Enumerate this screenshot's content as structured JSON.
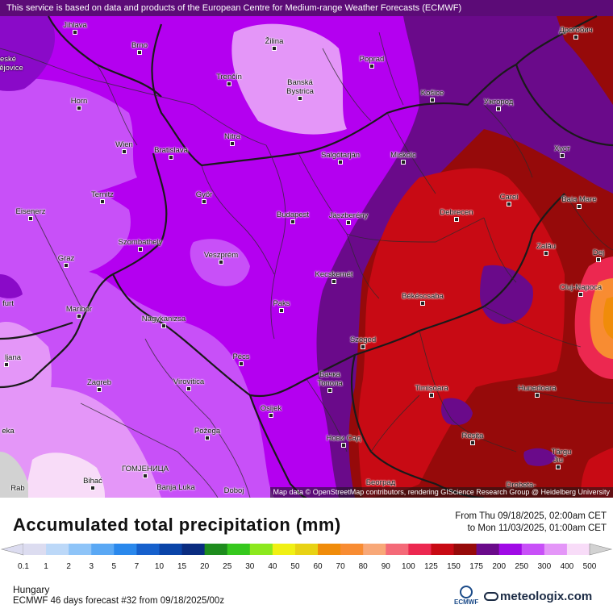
{
  "map": {
    "notice": "This service is based on data and products of the European Centre for Medium-range Weather Forecasts (ECMWF)",
    "attribution": "Map data © OpenStreetMap contributors, rendering GIScience Research Group @ Heidelberg University",
    "cities": [
      {
        "name": "Jihlava"
      },
      {
        "name": "Brno"
      },
      {
        "name": "Žilina"
      },
      {
        "name": "Poprad"
      },
      {
        "name": "Дрогобич"
      },
      {
        "name": "eské"
      },
      {
        "name": "ějovice"
      },
      {
        "name": "Trenčín"
      },
      {
        "name": "Banská"
      },
      {
        "name": "Bystrica"
      },
      {
        "name": "Košice"
      },
      {
        "name": "Ужгород"
      },
      {
        "name": "Horn"
      },
      {
        "name": "Nitra"
      },
      {
        "name": "Wien"
      },
      {
        "name": "Bratislava"
      },
      {
        "name": "Salgótarján"
      },
      {
        "name": "Miskolc"
      },
      {
        "name": "Хуст"
      },
      {
        "name": "Ternitz"
      },
      {
        "name": "Győr"
      },
      {
        "name": "Carei"
      },
      {
        "name": "Baia Mare"
      },
      {
        "name": "Eisenerz"
      },
      {
        "name": "Budapest"
      },
      {
        "name": "Jászberény"
      },
      {
        "name": "Debrecen"
      },
      {
        "name": "Szombathely"
      },
      {
        "name": "Zalău"
      },
      {
        "name": "Dej"
      },
      {
        "name": "Graz"
      },
      {
        "name": "Veszprém"
      },
      {
        "name": "Kecskemét"
      },
      {
        "name": "furt"
      },
      {
        "name": "Cluj-Napoca"
      },
      {
        "name": "Maribor"
      },
      {
        "name": "Paks"
      },
      {
        "name": "Békéscsaba"
      },
      {
        "name": "Nagykanizsa"
      },
      {
        "name": "Szeged"
      },
      {
        "name": "ljana"
      },
      {
        "name": "Pécs"
      },
      {
        "name": "Бачка"
      },
      {
        "name": "Топола"
      },
      {
        "name": "Zagreb"
      },
      {
        "name": "Virovitica"
      },
      {
        "name": "Timișoara"
      },
      {
        "name": "Hunedoara"
      },
      {
        "name": "Osijek"
      },
      {
        "name": "Požega"
      },
      {
        "name": "Нови Сад"
      },
      {
        "name": "Reșița"
      },
      {
        "name": "eka"
      },
      {
        "name": "Târgu"
      },
      {
        "name": "Jiu"
      },
      {
        "name": "ГОМЈЕНИЦА"
      },
      {
        "name": "Bihać"
      },
      {
        "name": "Banja Luka"
      },
      {
        "name": "Doboj"
      },
      {
        "name": "Београд"
      },
      {
        "name": "Drobeta-"
      },
      {
        "name": "Rab"
      }
    ]
  },
  "legend": {
    "title": "Accumulated total precipitation (mm)",
    "from": "From Thu 09/18/2025, 02:00am CET",
    "to": "to Mon 11/03/2025, 01:00am CET",
    "scale": [
      {
        "label": "0.1",
        "color": "#dcdcf0"
      },
      {
        "label": "1",
        "color": "#bcd8f8"
      },
      {
        "label": "2",
        "color": "#8ec4f8"
      },
      {
        "label": "3",
        "color": "#5aa8f4"
      },
      {
        "label": "5",
        "color": "#2a88ec"
      },
      {
        "label": "7",
        "color": "#1660cc"
      },
      {
        "label": "10",
        "color": "#0a44a8"
      },
      {
        "label": "15",
        "color": "#0a2c80"
      },
      {
        "label": "20",
        "color": "#1e8c1e"
      },
      {
        "label": "25",
        "color": "#36c81e"
      },
      {
        "label": "30",
        "color": "#8ce81e"
      },
      {
        "label": "40",
        "color": "#f0f014"
      },
      {
        "label": "50",
        "color": "#e8d214"
      },
      {
        "label": "60",
        "color": "#f08c0a"
      },
      {
        "label": "70",
        "color": "#f88c32"
      },
      {
        "label": "80",
        "color": "#f8a878"
      },
      {
        "label": "90",
        "color": "#f46a78"
      },
      {
        "label": "100",
        "color": "#ec2850"
      },
      {
        "label": "125",
        "color": "#c80a14"
      },
      {
        "label": "150",
        "color": "#960a0a"
      },
      {
        "label": "175",
        "color": "#6a0a8a"
      },
      {
        "label": "200",
        "color": "#a00ae6"
      },
      {
        "label": "250",
        "color": "#c850f8"
      },
      {
        "label": "300",
        "color": "#e496f8"
      },
      {
        "label": "400",
        "color": "#f8dcf8"
      },
      {
        "label": "500",
        "color": "#d2d2d2"
      }
    ],
    "region": "Hungary",
    "model": "ECMWF 46 days forecast #32 from  09/18/2025/00z",
    "ecmwf_logo": "ECMWF",
    "brand": "meteologix.com"
  }
}
